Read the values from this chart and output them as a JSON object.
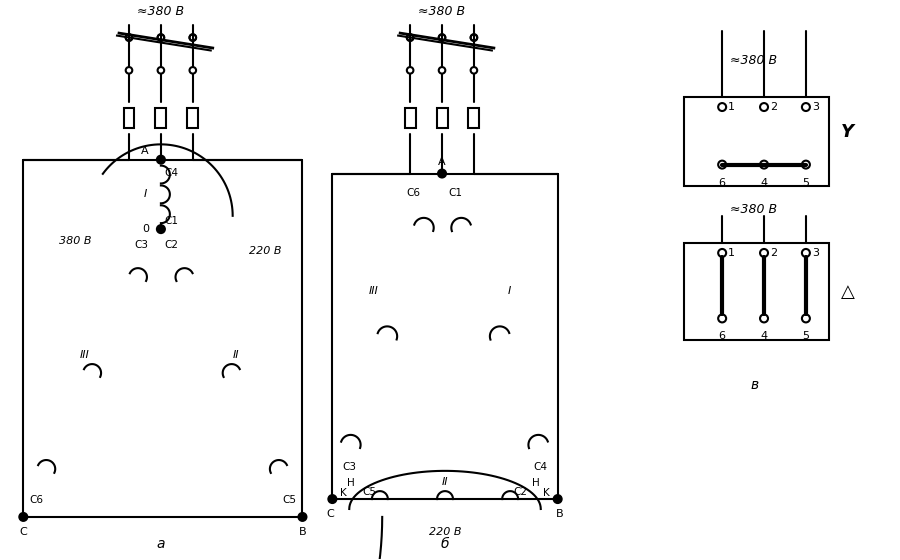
{
  "bg_color": "#ffffff",
  "lc": "#000000",
  "lw": 1.5,
  "voltage_380": "≈380 В",
  "voltage_220": "220 В",
  "voltage_380b": "380 В"
}
